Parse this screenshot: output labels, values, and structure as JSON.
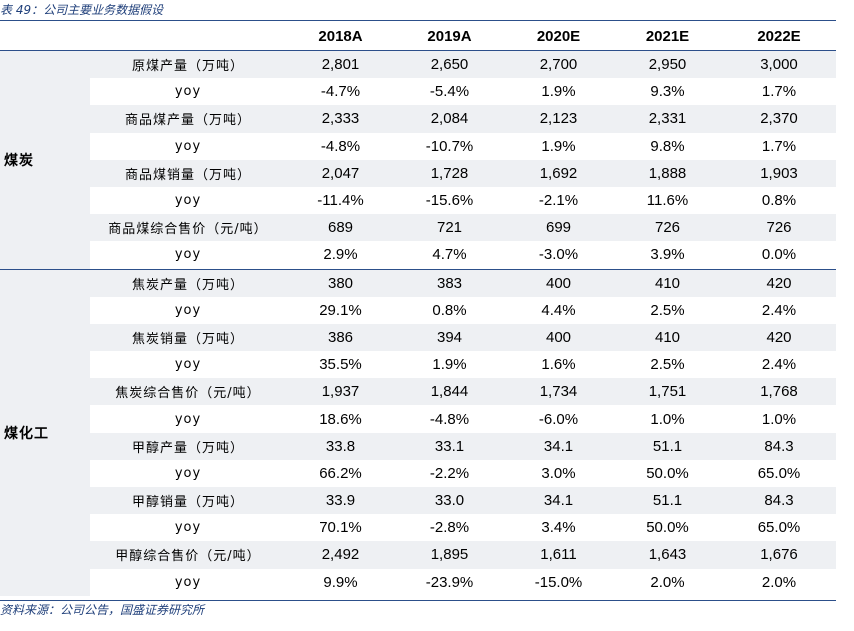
{
  "caption": "表 49：公司主要业务数据假设",
  "source": "资料来源：公司公告，国盛证券研究所",
  "columns": [
    "2018A",
    "2019A",
    "2020E",
    "2021E",
    "2022E"
  ],
  "groups": [
    {
      "name": "煤炭",
      "rows": [
        {
          "label": "原煤产量（万吨）",
          "values": [
            "2,801",
            "2,650",
            "2,700",
            "2,950",
            "3,000"
          ]
        },
        {
          "label": "yoy",
          "values": [
            "-4.7%",
            "-5.4%",
            "1.9%",
            "9.3%",
            "1.7%"
          ]
        },
        {
          "label": "商品煤产量（万吨）",
          "values": [
            "2,333",
            "2,084",
            "2,123",
            "2,331",
            "2,370"
          ]
        },
        {
          "label": "yoy",
          "values": [
            "-4.8%",
            "-10.7%",
            "1.9%",
            "9.8%",
            "1.7%"
          ]
        },
        {
          "label": "商品煤销量（万吨）",
          "values": [
            "2,047",
            "1,728",
            "1,692",
            "1,888",
            "1,903"
          ]
        },
        {
          "label": "yoy",
          "values": [
            "-11.4%",
            "-15.6%",
            "-2.1%",
            "11.6%",
            "0.8%"
          ]
        },
        {
          "label": "商品煤综合售价（元/吨）",
          "values": [
            "689",
            "721",
            "699",
            "726",
            "726"
          ]
        },
        {
          "label": "yoy",
          "values": [
            "2.9%",
            "4.7%",
            "-3.0%",
            "3.9%",
            "0.0%"
          ]
        }
      ]
    },
    {
      "name": "煤化工",
      "rows": [
        {
          "label": "焦炭产量（万吨）",
          "values": [
            "380",
            "383",
            "400",
            "410",
            "420"
          ]
        },
        {
          "label": "yoy",
          "values": [
            "29.1%",
            "0.8%",
            "4.4%",
            "2.5%",
            "2.4%"
          ]
        },
        {
          "label": "焦炭销量（万吨）",
          "values": [
            "386",
            "394",
            "400",
            "410",
            "420"
          ]
        },
        {
          "label": "yoy",
          "values": [
            "35.5%",
            "1.9%",
            "1.6%",
            "2.5%",
            "2.4%"
          ]
        },
        {
          "label": "焦炭综合售价（元/吨）",
          "values": [
            "1,937",
            "1,844",
            "1,734",
            "1,751",
            "1,768"
          ]
        },
        {
          "label": "yoy",
          "values": [
            "18.6%",
            "-4.8%",
            "-6.0%",
            "1.0%",
            "1.0%"
          ]
        },
        {
          "label": "甲醇产量（万吨）",
          "values": [
            "33.8",
            "33.1",
            "34.1",
            "51.1",
            "84.3"
          ]
        },
        {
          "label": "yoy",
          "values": [
            "66.2%",
            "-2.2%",
            "3.0%",
            "50.0%",
            "65.0%"
          ]
        },
        {
          "label": "甲醇销量（万吨）",
          "values": [
            "33.9",
            "33.0",
            "34.1",
            "51.1",
            "84.3"
          ]
        },
        {
          "label": "yoy",
          "values": [
            "70.1%",
            "-2.8%",
            "3.4%",
            "50.0%",
            "65.0%"
          ]
        },
        {
          "label": "甲醇综合售价（元/吨）",
          "values": [
            "2,492",
            "1,895",
            "1,611",
            "1,643",
            "1,676"
          ]
        },
        {
          "label": "yoy",
          "values": [
            "9.9%",
            "-23.9%",
            "-15.0%",
            "2.0%",
            "2.0%"
          ]
        }
      ]
    }
  ]
}
